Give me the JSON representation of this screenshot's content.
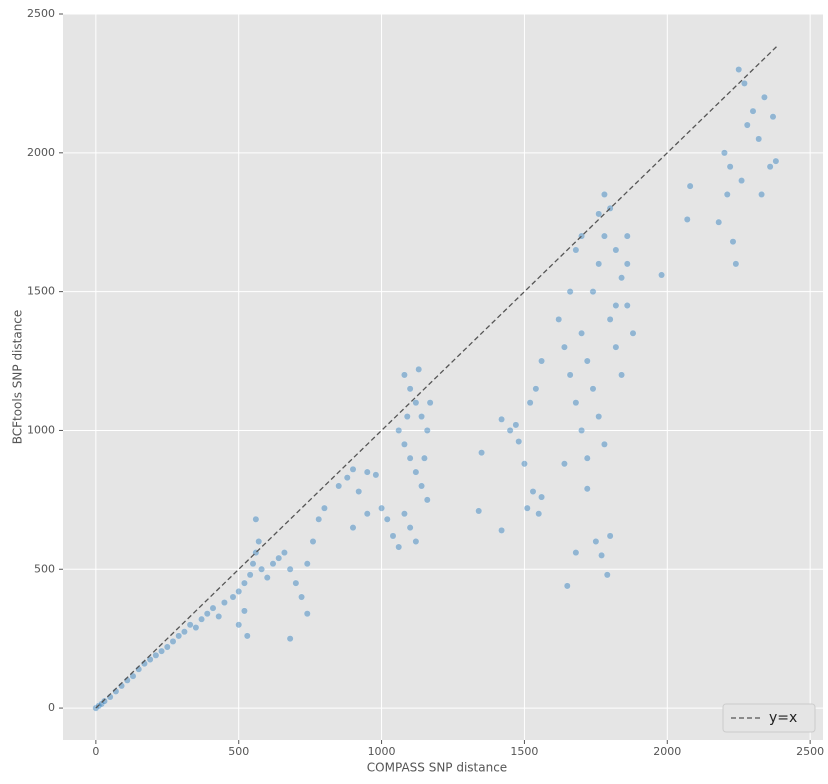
{
  "chart_data": {
    "type": "scatter",
    "xlabel": "COMPASS SNP distance",
    "ylabel": "BCFtools SNP distance",
    "color": "#2b7bba",
    "grid": true,
    "legend": "lower right",
    "xlim": [
      -115,
      2545
    ],
    "ylim": [
      -115,
      2500
    ],
    "xticks": [
      0,
      500,
      1000,
      1500,
      2000,
      2500
    ],
    "yticks": [
      0,
      500,
      1000,
      1500,
      2000,
      2500
    ],
    "x": [
      0,
      10,
      20,
      30,
      50,
      70,
      90,
      110,
      130,
      150,
      170,
      190,
      210,
      230,
      250,
      270,
      290,
      310,
      330,
      350,
      370,
      390,
      410,
      430,
      450,
      480,
      500,
      520,
      540,
      550,
      560,
      570,
      580,
      600,
      620,
      640,
      660,
      680,
      700,
      720,
      740,
      760,
      780,
      800,
      740,
      680,
      560,
      520,
      500,
      530,
      850,
      880,
      900,
      920,
      950,
      980,
      1000,
      1020,
      1040,
      1060,
      950,
      900,
      1080,
      1100,
      1120,
      1140,
      1160,
      1080,
      1100,
      1120,
      1140,
      1160,
      1080,
      1100,
      1120,
      1090,
      1150,
      1060,
      1170,
      1130,
      1340,
      1350,
      1420,
      1450,
      1470,
      1480,
      1500,
      1510,
      1530,
      1550,
      1560,
      1520,
      1540,
      1560,
      1420,
      1620,
      1640,
      1660,
      1680,
      1700,
      1720,
      1740,
      1760,
      1780,
      1800,
      1820,
      1840,
      1860,
      1880,
      1700,
      1720,
      1740,
      1760,
      1780,
      1800,
      1820,
      1840,
      1860,
      1780,
      1660,
      1680,
      1700,
      1640,
      1720,
      1750,
      1770,
      1790,
      1800,
      1650,
      1680,
      1760,
      1820,
      1860,
      2070,
      2080,
      2180,
      2200,
      2220,
      2240,
      2250,
      2270,
      2300,
      2320,
      2340,
      2360,
      2370,
      2230,
      2210,
      2280,
      2260,
      1980,
      2330,
      2380
    ],
    "values": [
      0,
      8,
      15,
      25,
      40,
      60,
      80,
      100,
      115,
      140,
      160,
      175,
      190,
      205,
      220,
      240,
      260,
      275,
      300,
      290,
      320,
      340,
      360,
      330,
      380,
      400,
      420,
      450,
      480,
      520,
      560,
      600,
      500,
      470,
      520,
      540,
      560,
      500,
      450,
      400,
      520,
      600,
      680,
      720,
      340,
      250,
      680,
      350,
      300,
      260,
      800,
      830,
      860,
      780,
      850,
      840,
      720,
      680,
      620,
      580,
      700,
      650,
      1200,
      1150,
      1100,
      1050,
      1000,
      950,
      900,
      850,
      800,
      750,
      700,
      650,
      600,
      1050,
      900,
      1000,
      1100,
      1220,
      710,
      920,
      1040,
      1000,
      1020,
      960,
      880,
      720,
      780,
      700,
      760,
      1100,
      1150,
      1250,
      640,
      1400,
      1300,
      1200,
      1100,
      1000,
      900,
      1500,
      1600,
      1700,
      1800,
      1650,
      1550,
      1450,
      1350,
      1350,
      1250,
      1150,
      1050,
      950,
      1400,
      1300,
      1200,
      1700,
      1850,
      1500,
      1650,
      1700,
      880,
      790,
      600,
      550,
      480,
      620,
      440,
      560,
      1780,
      1450,
      1600,
      1760,
      1880,
      1750,
      2000,
      1950,
      1600,
      2300,
      2250,
      2150,
      2050,
      2200,
      1950,
      2130,
      1680,
      1850,
      2100,
      1900,
      1560,
      1850,
      1970
    ],
    "reference_line": {
      "name": "y=x",
      "color": "#555555",
      "x": [
        0,
        2385
      ],
      "values": [
        0,
        2385
      ]
    }
  }
}
